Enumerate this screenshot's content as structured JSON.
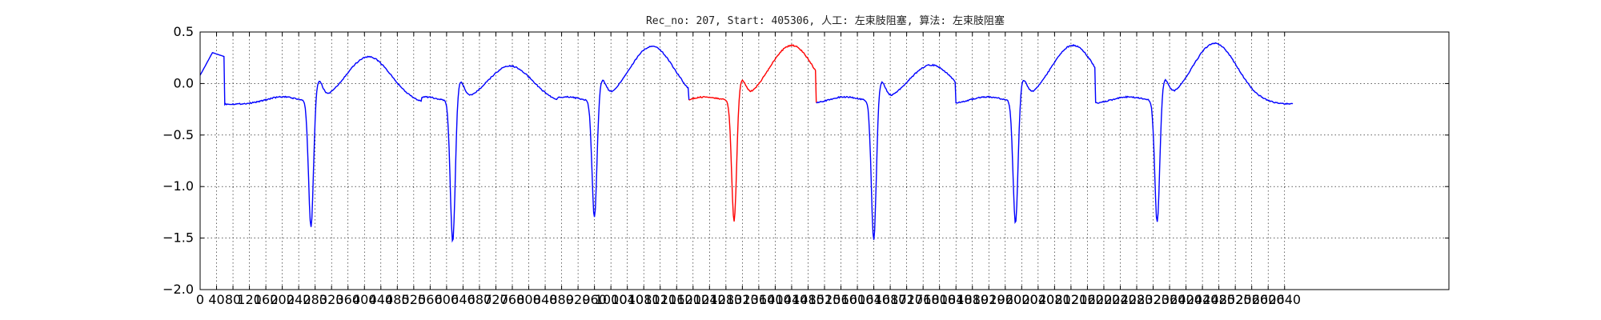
{
  "chart_data": {
    "type": "line",
    "title": "Rec_no: 207, Start: 405306, 人工: 左束肢阻塞, 算法: 左束肢阻塞",
    "xlabel": "",
    "ylabel": "",
    "xlim": [
      0,
      3040
    ],
    "ylim": [
      -2.0,
      0.5
    ],
    "grid": true,
    "x_tick_values": [
      0,
      40,
      80,
      120,
      160,
      200,
      240,
      280,
      320,
      360,
      400,
      440,
      480,
      520,
      560,
      600,
      640,
      680,
      720,
      760,
      800,
      840,
      880,
      920,
      960,
      1000,
      1040,
      1080,
      1120,
      1160,
      1200,
      1240,
      1280,
      1320,
      1360,
      1400,
      1440,
      1480,
      1520,
      1560,
      1600,
      1640,
      1680,
      1720,
      1760,
      1800,
      1840,
      1880,
      1920,
      1960,
      2000,
      2040,
      2080,
      2120,
      2160,
      2200,
      2240,
      2280,
      2320,
      2360,
      2400,
      2440,
      2480,
      2520,
      2560,
      2600,
      2640
    ],
    "y_ticks": [
      0.5,
      0.0,
      -0.5,
      -1.0,
      -1.5,
      -2.0
    ],
    "y_tick_labels": [
      "0.5",
      "0.0",
      "−0.5",
      "−1.0",
      "−1.5",
      "−2.0"
    ],
    "beat_samples": [
      0,
      90,
      320,
      360,
      400,
      450,
      480,
      500,
      540,
      580,
      610,
      660,
      690,
      720,
      780,
      860,
      900,
      940,
      1000,
      1040,
      1080,
      1110,
      1140,
      1190,
      1240,
      1290,
      1330,
      1400,
      1450,
      1490
    ],
    "beats": [
      {
        "r": 270,
        "trough": -1.46,
        "twave": 0.26,
        "start": 0,
        "end": 540,
        "color": "#0000ff"
      },
      {
        "r": 615,
        "trough": -1.6,
        "twave": 0.17,
        "start": 540,
        "end": 870,
        "color": "#0000ff"
      },
      {
        "r": 960,
        "trough": -1.37,
        "twave": 0.36,
        "start": 870,
        "end": 1190,
        "color": "#0000ff"
      },
      {
        "r": 1300,
        "trough": -1.41,
        "twave": 0.37,
        "start": 1190,
        "end": 1500,
        "color": "#ff0000"
      },
      {
        "r": 1640,
        "trough": -1.58,
        "twave": 0.18,
        "start": 1500,
        "end": 1840,
        "color": "#0000ff"
      },
      {
        "r": 1985,
        "trough": -1.43,
        "twave": 0.37,
        "start": 1840,
        "end": 2180,
        "color": "#0000ff"
      },
      {
        "r": 2330,
        "trough": -1.42,
        "twave": 0.39,
        "start": 2180,
        "end": 2660,
        "color": "#0000ff"
      }
    ],
    "series": [
      {
        "color": "#0000ff"
      },
      {
        "color": "#ff0000"
      }
    ]
  }
}
